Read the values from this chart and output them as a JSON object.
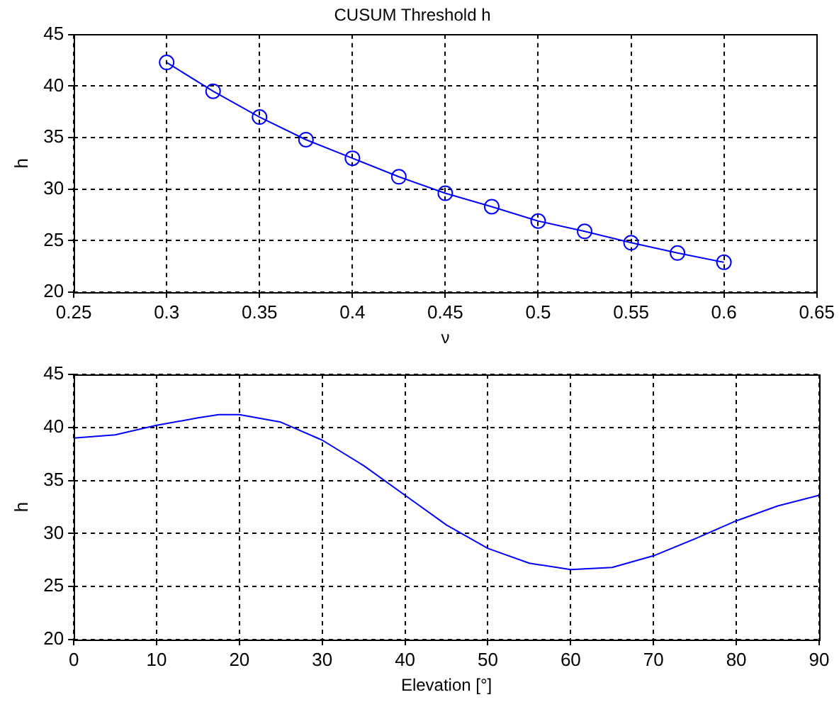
{
  "chart_data": [
    {
      "type": "line",
      "title": "CUSUM Threshold h",
      "xlabel": "ν",
      "ylabel": "h",
      "x": [
        0.3,
        0.325,
        0.35,
        0.375,
        0.4,
        0.425,
        0.45,
        0.475,
        0.5,
        0.525,
        0.55,
        0.575,
        0.6
      ],
      "series": [
        {
          "color": "#0000ff",
          "values": [
            42.3,
            39.5,
            37.0,
            34.8,
            33.0,
            31.2,
            29.6,
            28.3,
            26.9,
            25.9,
            24.8,
            23.8,
            22.9
          ]
        }
      ],
      "xlim": [
        0.25,
        0.65
      ],
      "xticks": [
        0.25,
        0.3,
        0.35,
        0.4,
        0.45,
        0.5,
        0.55,
        0.6,
        0.65
      ],
      "ylim": [
        20,
        45
      ],
      "yticks": [
        20,
        25,
        30,
        35,
        40,
        45
      ],
      "grid": true,
      "marker": "circle",
      "line_style": "solid",
      "legend": false
    },
    {
      "type": "line",
      "xlabel": "Elevation [°]",
      "ylabel": "h",
      "x": [
        0,
        5,
        10,
        15,
        17.5,
        20,
        25,
        30,
        35,
        40,
        45,
        50,
        55,
        60,
        65,
        70,
        75,
        80,
        85,
        90
      ],
      "series": [
        {
          "color": "#0000ff",
          "values": [
            39.0,
            39.3,
            40.2,
            40.9,
            41.2,
            41.2,
            40.5,
            38.8,
            36.4,
            33.6,
            30.8,
            28.6,
            27.2,
            26.6,
            26.8,
            27.9,
            29.5,
            31.2,
            32.6,
            33.6
          ]
        }
      ],
      "xlim": [
        0,
        90
      ],
      "xticks": [
        0,
        10,
        20,
        30,
        40,
        50,
        60,
        70,
        80,
        90
      ],
      "ylim": [
        20,
        45
      ],
      "yticks": [
        20,
        25,
        30,
        35,
        40,
        45
      ],
      "grid": true,
      "marker": "none",
      "line_style": "solid",
      "legend": false
    }
  ]
}
